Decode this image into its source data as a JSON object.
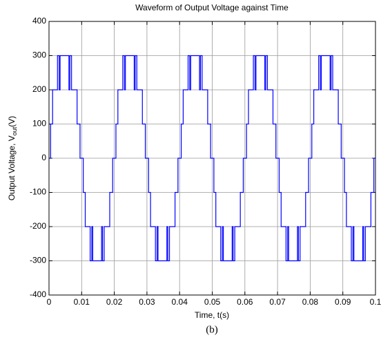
{
  "chart_data": {
    "type": "line",
    "title": "Waveform of Output Voltage against Time",
    "xlabel": "Time, t(s)",
    "ylabel": {
      "text": "Output Voltage,  V",
      "sub": "out",
      "unit": "(V)"
    },
    "caption": "(b)",
    "color": "#0000ff",
    "grid": true,
    "xlim": [
      0,
      0.1
    ],
    "xticks": [
      0,
      0.01,
      0.02,
      0.03,
      0.04,
      0.05,
      0.06,
      0.07,
      0.08,
      0.09,
      0.1
    ],
    "ylim": [
      -400,
      400
    ],
    "yticks": [
      -400,
      -300,
      -200,
      -100,
      0,
      100,
      200,
      300,
      400
    ],
    "x": [
      0,
      0.0005,
      0.0005,
      0.0011,
      0.0011,
      0.0026,
      0.0026,
      0.0031,
      0.0031,
      0.0034,
      0.0034,
      0.0061,
      0.0061,
      0.0064,
      0.0064,
      0.0069,
      0.0069,
      0.0086,
      0.0086,
      0.0095,
      0.0095,
      0.01,
      0.0105,
      0.0105,
      0.0111,
      0.0111,
      0.0126,
      0.0126,
      0.0131,
      0.0131,
      0.0134,
      0.0134,
      0.0161,
      0.0161,
      0.0164,
      0.0164,
      0.0169,
      0.0169,
      0.0186,
      0.0186,
      0.0195,
      0.0195,
      0.02,
      0.0205,
      0.0205,
      0.0211,
      0.0211,
      0.0226,
      0.0226,
      0.0231,
      0.0231,
      0.0234,
      0.0234,
      0.0261,
      0.0261,
      0.0264,
      0.0264,
      0.0269,
      0.0269,
      0.0286,
      0.0286,
      0.0295,
      0.0295,
      0.03,
      0.0305,
      0.0305,
      0.0311,
      0.0311,
      0.0326,
      0.0326,
      0.0331,
      0.0331,
      0.0334,
      0.0334,
      0.0361,
      0.0361,
      0.0364,
      0.0364,
      0.0369,
      0.0369,
      0.0386,
      0.0386,
      0.0395,
      0.0395,
      0.04,
      0.0405,
      0.0405,
      0.0411,
      0.0411,
      0.0426,
      0.0426,
      0.0431,
      0.0431,
      0.0434,
      0.0434,
      0.0461,
      0.0461,
      0.0464,
      0.0464,
      0.0469,
      0.0469,
      0.0486,
      0.0486,
      0.0495,
      0.0495,
      0.05,
      0.0505,
      0.0505,
      0.0511,
      0.0511,
      0.0526,
      0.0526,
      0.0531,
      0.0531,
      0.0534,
      0.0534,
      0.0561,
      0.0561,
      0.0564,
      0.0564,
      0.0569,
      0.0569,
      0.0586,
      0.0586,
      0.0595,
      0.0595,
      0.06,
      0.0605,
      0.0605,
      0.0611,
      0.0611,
      0.0626,
      0.0626,
      0.0631,
      0.0631,
      0.0634,
      0.0634,
      0.0661,
      0.0661,
      0.0664,
      0.0664,
      0.0669,
      0.0669,
      0.0686,
      0.0686,
      0.0695,
      0.0695,
      0.07,
      0.0705,
      0.0705,
      0.0711,
      0.0711,
      0.0726,
      0.0726,
      0.0731,
      0.0731,
      0.0734,
      0.0734,
      0.0761,
      0.0761,
      0.0764,
      0.0764,
      0.0769,
      0.0769,
      0.0786,
      0.0786,
      0.0795,
      0.0795,
      0.08,
      0.0805,
      0.0805,
      0.0811,
      0.0811,
      0.0826,
      0.0826,
      0.0831,
      0.0831,
      0.0834,
      0.0834,
      0.0861,
      0.0861,
      0.0864,
      0.0864,
      0.0869,
      0.0869,
      0.0886,
      0.0886,
      0.0895,
      0.0895,
      0.09,
      0.0905,
      0.0905,
      0.0911,
      0.0911,
      0.0926,
      0.0926,
      0.0931,
      0.0931,
      0.0934,
      0.0934,
      0.0961,
      0.0961,
      0.0964,
      0.0964,
      0.0969,
      0.0969,
      0.0986,
      0.0986,
      0.0995,
      0.0995,
      0.1
    ],
    "values": [
      0,
      0,
      100,
      100,
      200,
      200,
      300,
      300,
      200,
      200,
      300,
      300,
      200,
      200,
      300,
      300,
      200,
      200,
      100,
      100,
      0,
      0,
      0,
      -100,
      -100,
      -200,
      -200,
      -300,
      -300,
      -200,
      -200,
      -300,
      -300,
      -200,
      -200,
      -300,
      -300,
      -200,
      -200,
      -100,
      -100,
      0,
      0,
      0,
      100,
      100,
      200,
      200,
      300,
      300,
      200,
      200,
      300,
      300,
      200,
      200,
      300,
      300,
      200,
      200,
      100,
      100,
      0,
      0,
      0,
      -100,
      -100,
      -200,
      -200,
      -300,
      -300,
      -200,
      -200,
      -300,
      -300,
      -200,
      -200,
      -300,
      -300,
      -200,
      -200,
      -100,
      -100,
      0,
      0,
      0,
      100,
      100,
      200,
      200,
      300,
      300,
      200,
      200,
      300,
      300,
      200,
      200,
      300,
      300,
      200,
      200,
      100,
      100,
      0,
      0,
      0,
      -100,
      -100,
      -200,
      -200,
      -300,
      -300,
      -200,
      -200,
      -300,
      -300,
      -200,
      -200,
      -300,
      -300,
      -200,
      -200,
      -100,
      -100,
      0,
      0,
      0,
      100,
      100,
      200,
      200,
      300,
      300,
      200,
      200,
      300,
      300,
      200,
      200,
      300,
      300,
      200,
      200,
      100,
      100,
      0,
      0,
      0,
      -100,
      -100,
      -200,
      -200,
      -300,
      -300,
      -200,
      -200,
      -300,
      -300,
      -200,
      -200,
      -300,
      -300,
      -200,
      -200,
      -100,
      -100,
      0,
      0,
      0,
      100,
      100,
      200,
      200,
      300,
      300,
      200,
      200,
      300,
      300,
      200,
      200,
      300,
      300,
      200,
      200,
      100,
      100,
      0,
      0,
      0,
      -100,
      -100,
      -200,
      -200,
      -300,
      -300,
      -200,
      -200,
      -300,
      -300,
      -200,
      -200,
      -300,
      -300,
      -200,
      -200,
      -100,
      -100,
      0,
      0
    ]
  }
}
